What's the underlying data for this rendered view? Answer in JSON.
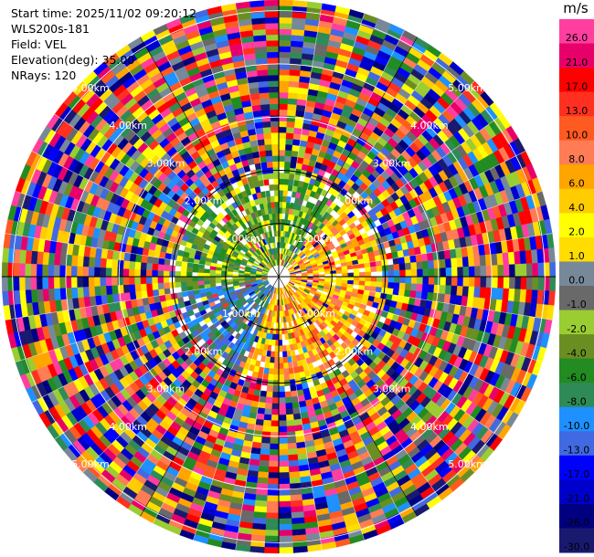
{
  "info": {
    "start_time": "Start time: 2025/11/02 09:20:12",
    "instrument": "WLS200s-181",
    "field": "Field: VEL",
    "elevation": "Elevation(deg): 35.00",
    "nrays": "NRays: 120"
  },
  "chart_data": {
    "type": "heatmap",
    "projection": "polar PPI",
    "field": "VEL",
    "units": "m/s",
    "n_rays": 120,
    "range_rings_km": [
      1.0,
      2.0,
      3.0,
      4.0,
      5.0
    ],
    "ring_labels": [
      "1.00km",
      "2.00km",
      "3.00km",
      "4.00km",
      "5.00km"
    ],
    "max_range_km": 5.2,
    "colorbar": {
      "title": "m/s",
      "tick_labels": [
        "26.0",
        "21.0",
        "17.0",
        "13.0",
        "10.0",
        "8.0",
        "6.0",
        "4.0",
        "2.0",
        "1.0",
        "0.0",
        "-1.0",
        "-2.0",
        "-4.0",
        "-6.0",
        "-8.0",
        "-10.0",
        "-13.0",
        "-17.0",
        "-21.0",
        "-26.0",
        "-30.0"
      ],
      "colors": [
        "#ff3ea0",
        "#e8006a",
        "#ff0000",
        "#ff3020",
        "#ff5a20",
        "#ff7c55",
        "#ffa500",
        "#ffcc00",
        "#ffff00",
        "#ffdd00",
        "#778899",
        "#696969",
        "#9acd32",
        "#6b8e23",
        "#228b22",
        "#2e8b57",
        "#1e90ff",
        "#4169e1",
        "#0000ff",
        "#0000cd",
        "#000080",
        "#191970"
      ]
    }
  }
}
